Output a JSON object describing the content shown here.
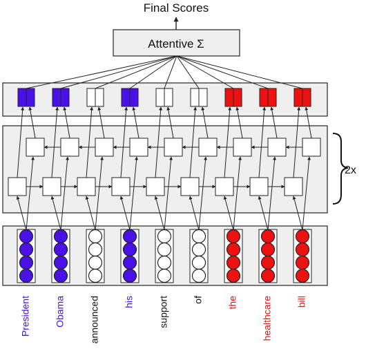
{
  "title": "Final Scores",
  "attentive_label": "Attentive Σ",
  "repeat_label": "2x",
  "colors": {
    "entity": "#4a10e8",
    "neutral": "#ffffff",
    "target": "#ee1111",
    "panel": "#efefef",
    "stroke": "#222222"
  },
  "tokens": [
    {
      "word": "President",
      "group": "entity"
    },
    {
      "word": "Obama",
      "group": "entity"
    },
    {
      "word": "announced",
      "group": "neutral"
    },
    {
      "word": "his",
      "group": "entity"
    },
    {
      "word": "support",
      "group": "neutral"
    },
    {
      "word": "of",
      "group": "neutral"
    },
    {
      "word": "the",
      "group": "target"
    },
    {
      "word": "healthcare",
      "group": "target"
    },
    {
      "word": "bill",
      "group": "target"
    }
  ]
}
